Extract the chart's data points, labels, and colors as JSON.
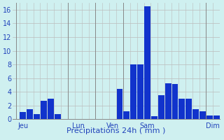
{
  "xlabel": "Précipitations 24h ( mm )",
  "background_color": "#cff0f0",
  "bar_color": "#1133cc",
  "ylim": [
    0,
    17
  ],
  "yticks": [
    0,
    2,
    4,
    6,
    8,
    10,
    12,
    14,
    16
  ],
  "values": [
    0,
    1.0,
    1.5,
    0.7,
    2.7,
    3.0,
    0.7,
    0,
    0,
    0,
    0,
    0,
    0,
    0,
    0,
    4.4,
    1.2,
    8.0,
    8.0,
    16.5,
    0.4,
    3.5,
    5.2,
    5.1,
    3.0,
    3.0,
    1.5,
    1.2,
    0.5,
    0.5
  ],
  "n_bars": 30,
  "day_labels": [
    "Jeu",
    "Lun",
    "Ven",
    "Sam",
    "Dim"
  ],
  "day_label_bar_positions": [
    1,
    9,
    14,
    19,
    28.5
  ],
  "day_sep_positions": [
    0,
    7.5,
    11.5,
    15.5,
    27.5
  ],
  "grid_minor_color": "#bbbbbb",
  "grid_major_color": "#888888",
  "tick_color": "#2244bb",
  "xlabel_color": "#2244bb",
  "xlabel_fontsize": 8,
  "ytick_fontsize": 7,
  "xtick_fontsize": 7
}
